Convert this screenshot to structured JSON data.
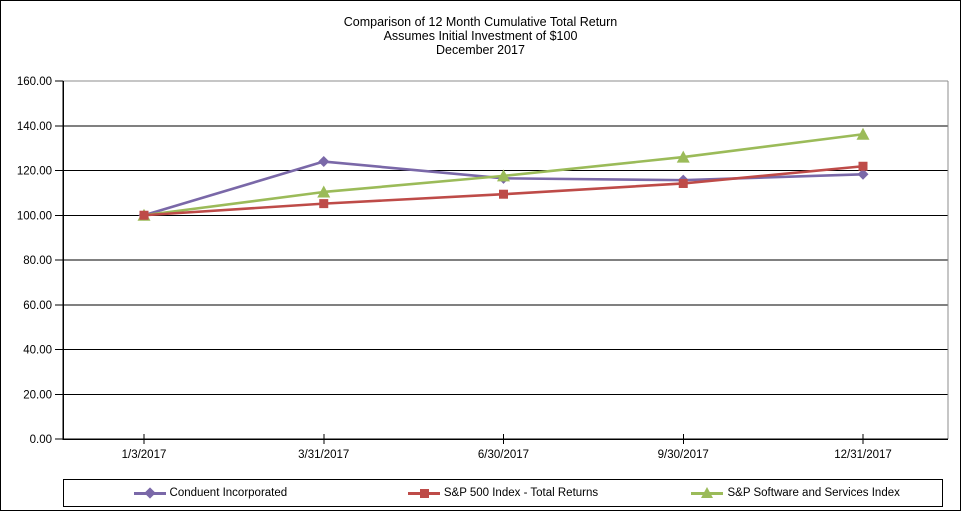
{
  "title": {
    "line1": "Comparison of 12 Month Cumulative Total Return",
    "line2": "Assumes Initial Investment of $100",
    "line3": "December 2017"
  },
  "chart_data": {
    "type": "line",
    "title": "Comparison of 12 Month Cumulative Total Return",
    "subtitle": "Assumes Initial Investment of $100",
    "period_label": "December 2017",
    "categories": [
      "1/3/2017",
      "3/31/2017",
      "6/30/2017",
      "9/30/2017",
      "12/31/2017"
    ],
    "series": [
      {
        "name": "Conduent Incorporated",
        "color": "#7A68A8",
        "marker": "diamond",
        "values": [
          100.0,
          124.0,
          116.5,
          115.7,
          118.3
        ]
      },
      {
        "name": "S&P 500 Index - Total Returns",
        "color": "#BE4B48",
        "marker": "square",
        "values": [
          100.0,
          105.2,
          109.4,
          114.2,
          121.9
        ]
      },
      {
        "name": "S&P Software and Services Index",
        "color": "#9BBB59",
        "marker": "triangle",
        "values": [
          100.0,
          110.4,
          117.6,
          126.0,
          136.2
        ]
      }
    ],
    "ylim": [
      0,
      160
    ],
    "y_ticks": [
      0,
      20,
      40,
      60,
      80,
      100,
      120,
      140,
      160
    ],
    "y_tick_labels": [
      "0.00",
      "20.00",
      "40.00",
      "60.00",
      "80.00",
      "100.00",
      "120.00",
      "140.00",
      "160.00"
    ],
    "xlabel": "",
    "ylabel": "",
    "grid": "horizontal",
    "legend_position": "bottom"
  }
}
